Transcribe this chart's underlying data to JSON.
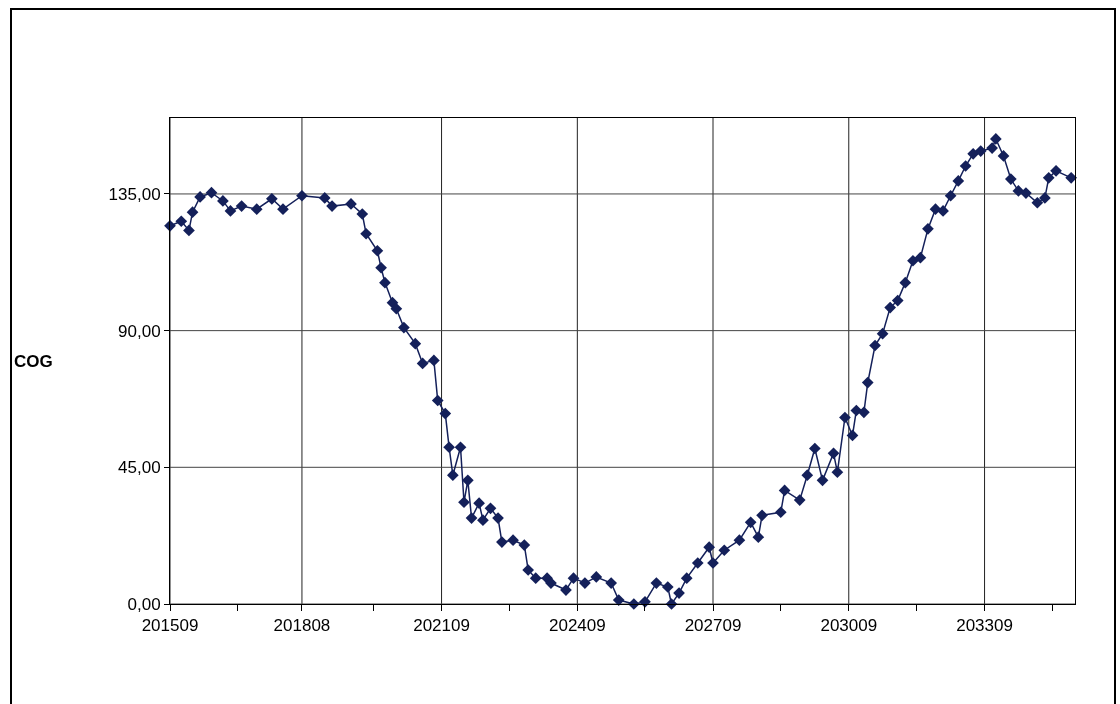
{
  "chart_data": {
    "type": "line",
    "ylabel": "COG",
    "x": [
      "2015-09",
      "2015-12",
      "2016-02",
      "2016-03",
      "2016-05",
      "2016-08",
      "2016-11",
      "2017-01",
      "2017-04",
      "2017-08",
      "2017-12",
      "2018-03",
      "2018-08",
      "2019-02",
      "2019-04",
      "2019-09",
      "2019-12",
      "2020-01",
      "2020-04",
      "2020-05",
      "2020-06",
      "2020-08",
      "2020-09",
      "2020-11",
      "2021-02",
      "2021-04",
      "2021-07",
      "2021-08",
      "2021-10",
      "2021-11",
      "2021-12",
      "2022-02",
      "2022-03",
      "2022-04",
      "2022-05",
      "2022-07",
      "2022-08",
      "2022-10",
      "2022-12",
      "2023-01",
      "2023-04",
      "2023-07",
      "2023-08",
      "2023-10",
      "2024-01",
      "2024-02",
      "2024-06",
      "2024-08",
      "2024-11",
      "2025-02",
      "2025-06",
      "2025-08",
      "2025-12",
      "2026-03",
      "2026-06",
      "2026-09",
      "2026-10",
      "2026-12",
      "2027-02",
      "2027-05",
      "2027-08",
      "2027-09",
      "2027-12",
      "2028-04",
      "2028-07",
      "2028-09",
      "2028-10",
      "2029-03",
      "2029-04",
      "2029-08",
      "2029-10",
      "2029-12",
      "2030-02",
      "2030-05",
      "2030-06",
      "2030-08",
      "2030-10",
      "2030-11",
      "2031-01",
      "2031-02",
      "2031-04",
      "2031-06",
      "2031-08",
      "2031-10",
      "2031-12",
      "2032-02",
      "2032-04",
      "2032-06",
      "2032-08",
      "2032-10",
      "2032-12",
      "2033-02",
      "2033-04",
      "2033-06",
      "2033-08",
      "2033-11",
      "2033-12",
      "2034-02",
      "2034-04",
      "2034-06",
      "2034-08",
      "2034-11",
      "2035-01",
      "2035-02",
      "2035-04",
      "2035-08"
    ],
    "series": [
      {
        "color": "#14205a",
        "values": [
          124.5,
          126,
          123,
          129,
          134,
          135.4,
          132.7,
          129.4,
          131,
          130,
          133.4,
          130,
          134.4,
          133.7,
          131,
          131.7,
          128.4,
          121.9,
          116.3,
          110.7,
          105.8,
          99.2,
          97.2,
          91,
          85.7,
          79.2,
          80.2,
          67,
          62.7,
          51.6,
          42.4,
          51.6,
          33.5,
          40.7,
          28.3,
          33.2,
          27.6,
          31.5,
          28.3,
          20.4,
          21,
          19.4,
          11.2,
          8.5,
          8.5,
          6.9,
          4.6,
          8.5,
          6.9,
          8.9,
          6.9,
          1.3,
          0,
          0.7,
          6.9,
          5.6,
          0,
          3.6,
          8.5,
          13.5,
          18.7,
          13.5,
          17.7,
          21,
          26.9,
          22,
          29.2,
          30.2,
          37.4,
          34.2,
          42.4,
          51.2,
          40.7,
          49.6,
          43.4,
          61.4,
          55.5,
          63.7,
          63.1,
          72.9,
          85.1,
          89,
          97.6,
          99.9,
          105.8,
          113,
          114,
          123.5,
          130,
          129.4,
          134.4,
          139.3,
          144.2,
          148.2,
          149.1,
          150.1,
          153.1,
          147.5,
          139.9,
          136,
          135.3,
          132.1,
          133.7,
          140.3,
          142.6,
          140.3
        ]
      }
    ],
    "xlim": [
      "2015-09",
      "2035-09"
    ],
    "xticks": [
      {
        "value": "2015-09",
        "label": "201509"
      },
      {
        "value": "2017-03",
        "label": null
      },
      {
        "value": "2018-08",
        "label": "201808"
      },
      {
        "value": "2020-03",
        "label": null
      },
      {
        "value": "2021-09",
        "label": "202109"
      },
      {
        "value": "2023-03",
        "label": null
      },
      {
        "value": "2024-09",
        "label": "202409"
      },
      {
        "value": "2026-03",
        "label": null
      },
      {
        "value": "2027-09",
        "label": "202709"
      },
      {
        "value": "2029-03",
        "label": null
      },
      {
        "value": "2030-09",
        "label": "203009"
      },
      {
        "value": "2032-03",
        "label": null
      },
      {
        "value": "2033-09",
        "label": "203309"
      },
      {
        "value": "2035-03",
        "label": null
      }
    ],
    "ylim": [
      0,
      160
    ],
    "yticks": [
      {
        "value": 0,
        "label": "0,00"
      },
      {
        "value": 45,
        "label": "45,00"
      },
      {
        "value": 90,
        "label": "90,00"
      },
      {
        "value": 135,
        "label": "135,00"
      }
    ],
    "grid": true,
    "marker": "diamond",
    "line_style": "solid"
  }
}
